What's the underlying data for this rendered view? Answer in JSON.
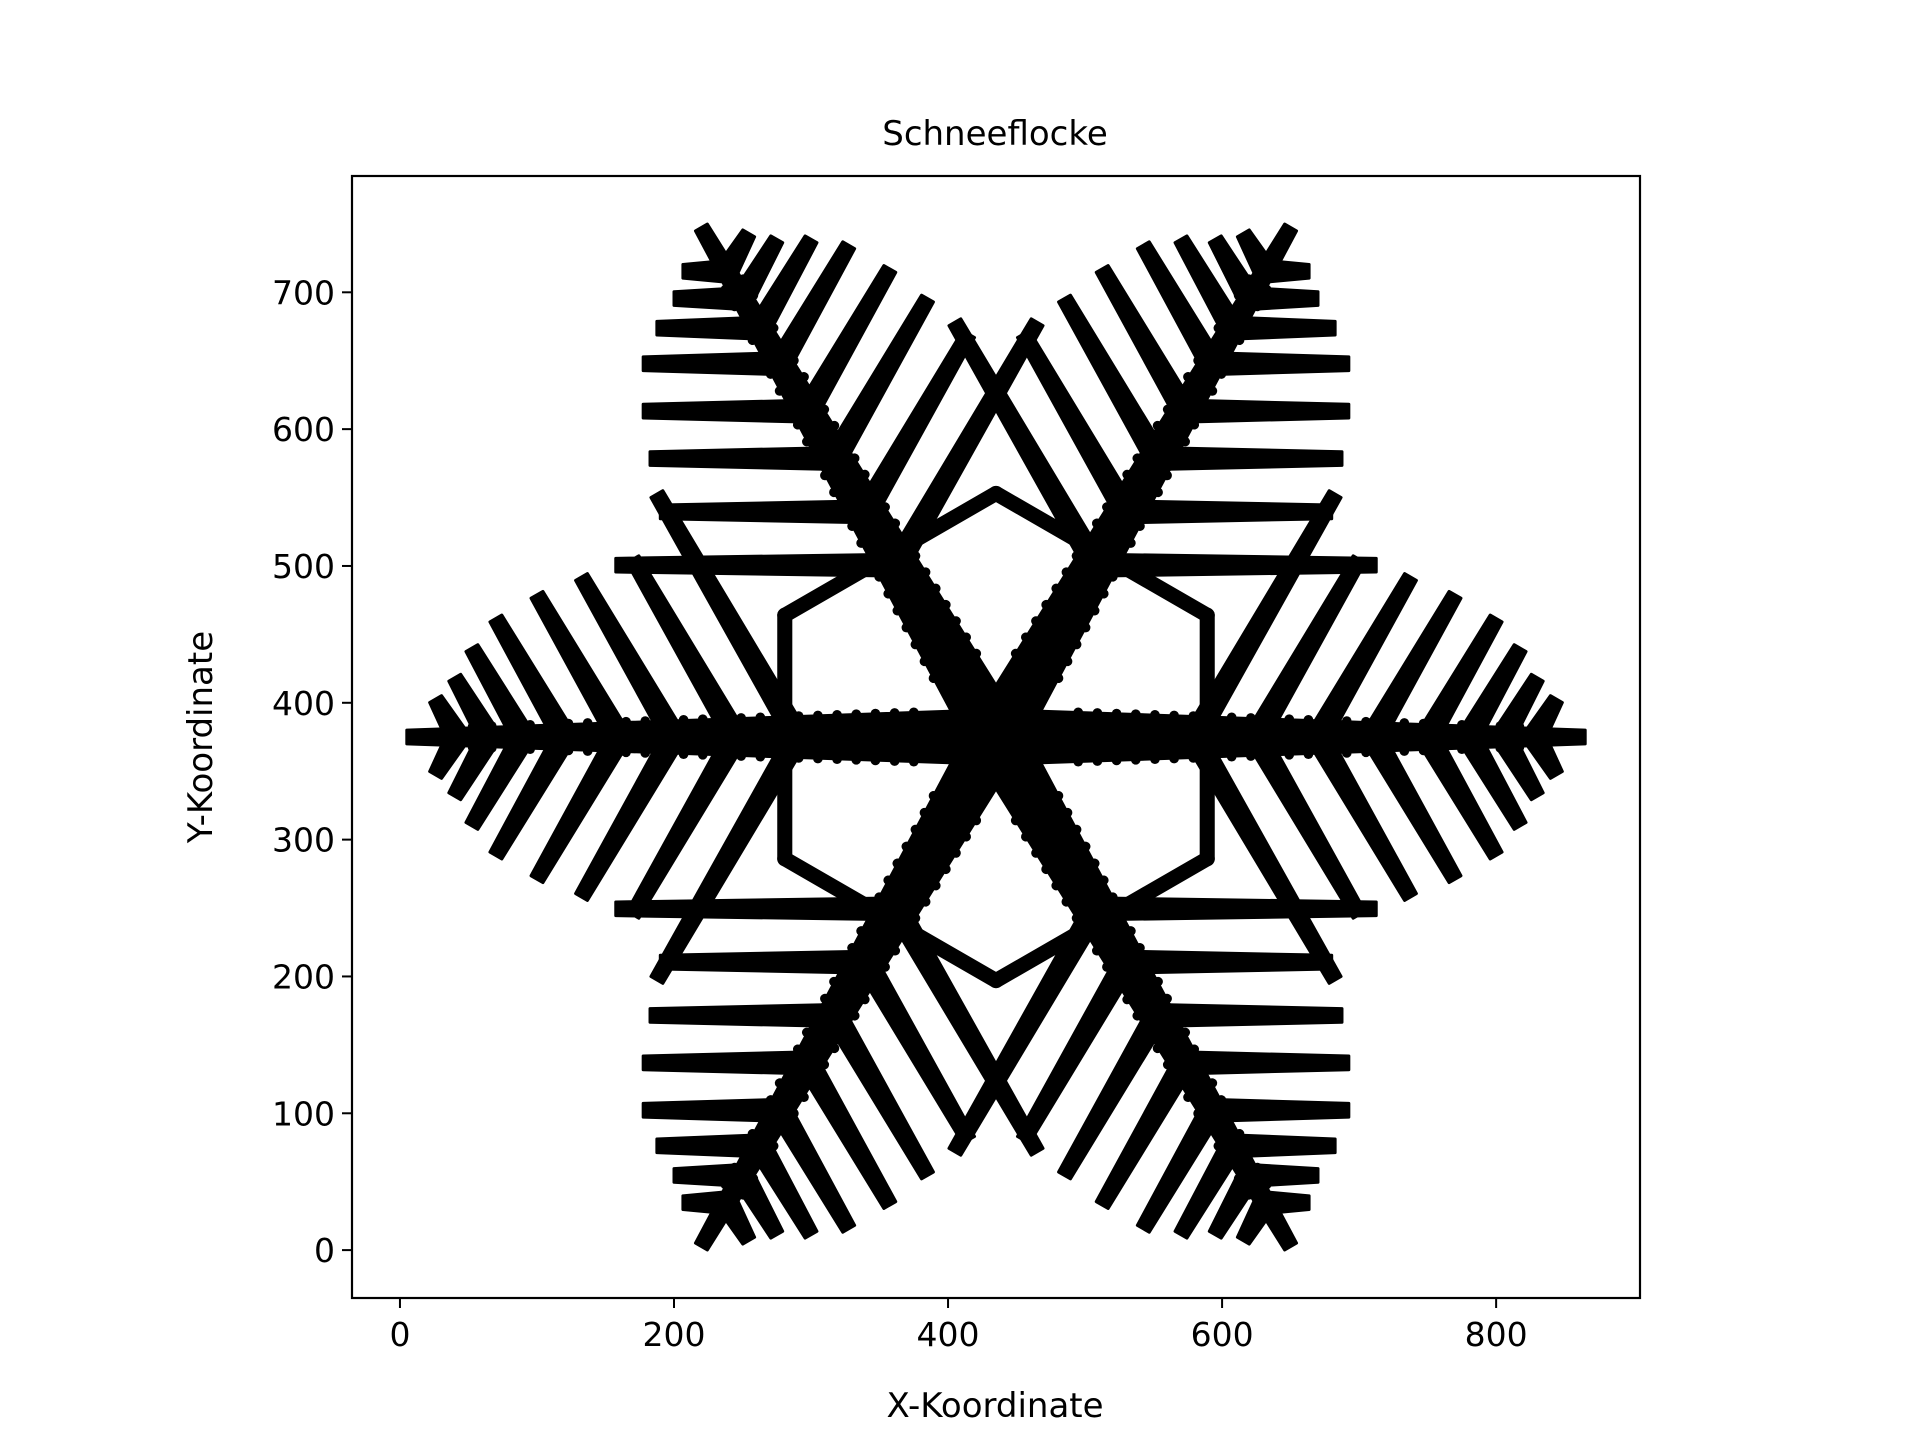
{
  "chart_data": {
    "type": "scatter",
    "title": "Schneeflocke",
    "xlabel": "X-Koordinate",
    "ylabel": "Y-Koordinate",
    "xlim": [
      -35,
      905
    ],
    "ylim": [
      -35,
      785
    ],
    "xticks": [
      0,
      200,
      400,
      600,
      800
    ],
    "yticks": [
      0,
      100,
      200,
      300,
      400,
      500,
      600,
      700
    ],
    "grid": false,
    "legend": "none",
    "marker_color": "#000000",
    "center": [
      435,
      375
    ],
    "arms": [
      {
        "angle_deg": 0,
        "length": 430
      },
      {
        "angle_deg": 60,
        "length": 430
      },
      {
        "angle_deg": 120,
        "length": 430
      },
      {
        "angle_deg": 180,
        "length": 430
      },
      {
        "angle_deg": 240,
        "length": 430
      },
      {
        "angle_deg": 300,
        "length": 430
      }
    ],
    "branches": [
      {
        "t": 145,
        "length": 205
      },
      {
        "t": 190,
        "length": 150
      },
      {
        "t": 235,
        "length": 135
      },
      {
        "t": 275,
        "length": 120
      },
      {
        "t": 315,
        "length": 100
      },
      {
        "t": 345,
        "length": 75
      },
      {
        "t": 370,
        "length": 50
      },
      {
        "t": 393,
        "length": 32
      }
    ],
    "inner_hexagon_radius": 178
  }
}
